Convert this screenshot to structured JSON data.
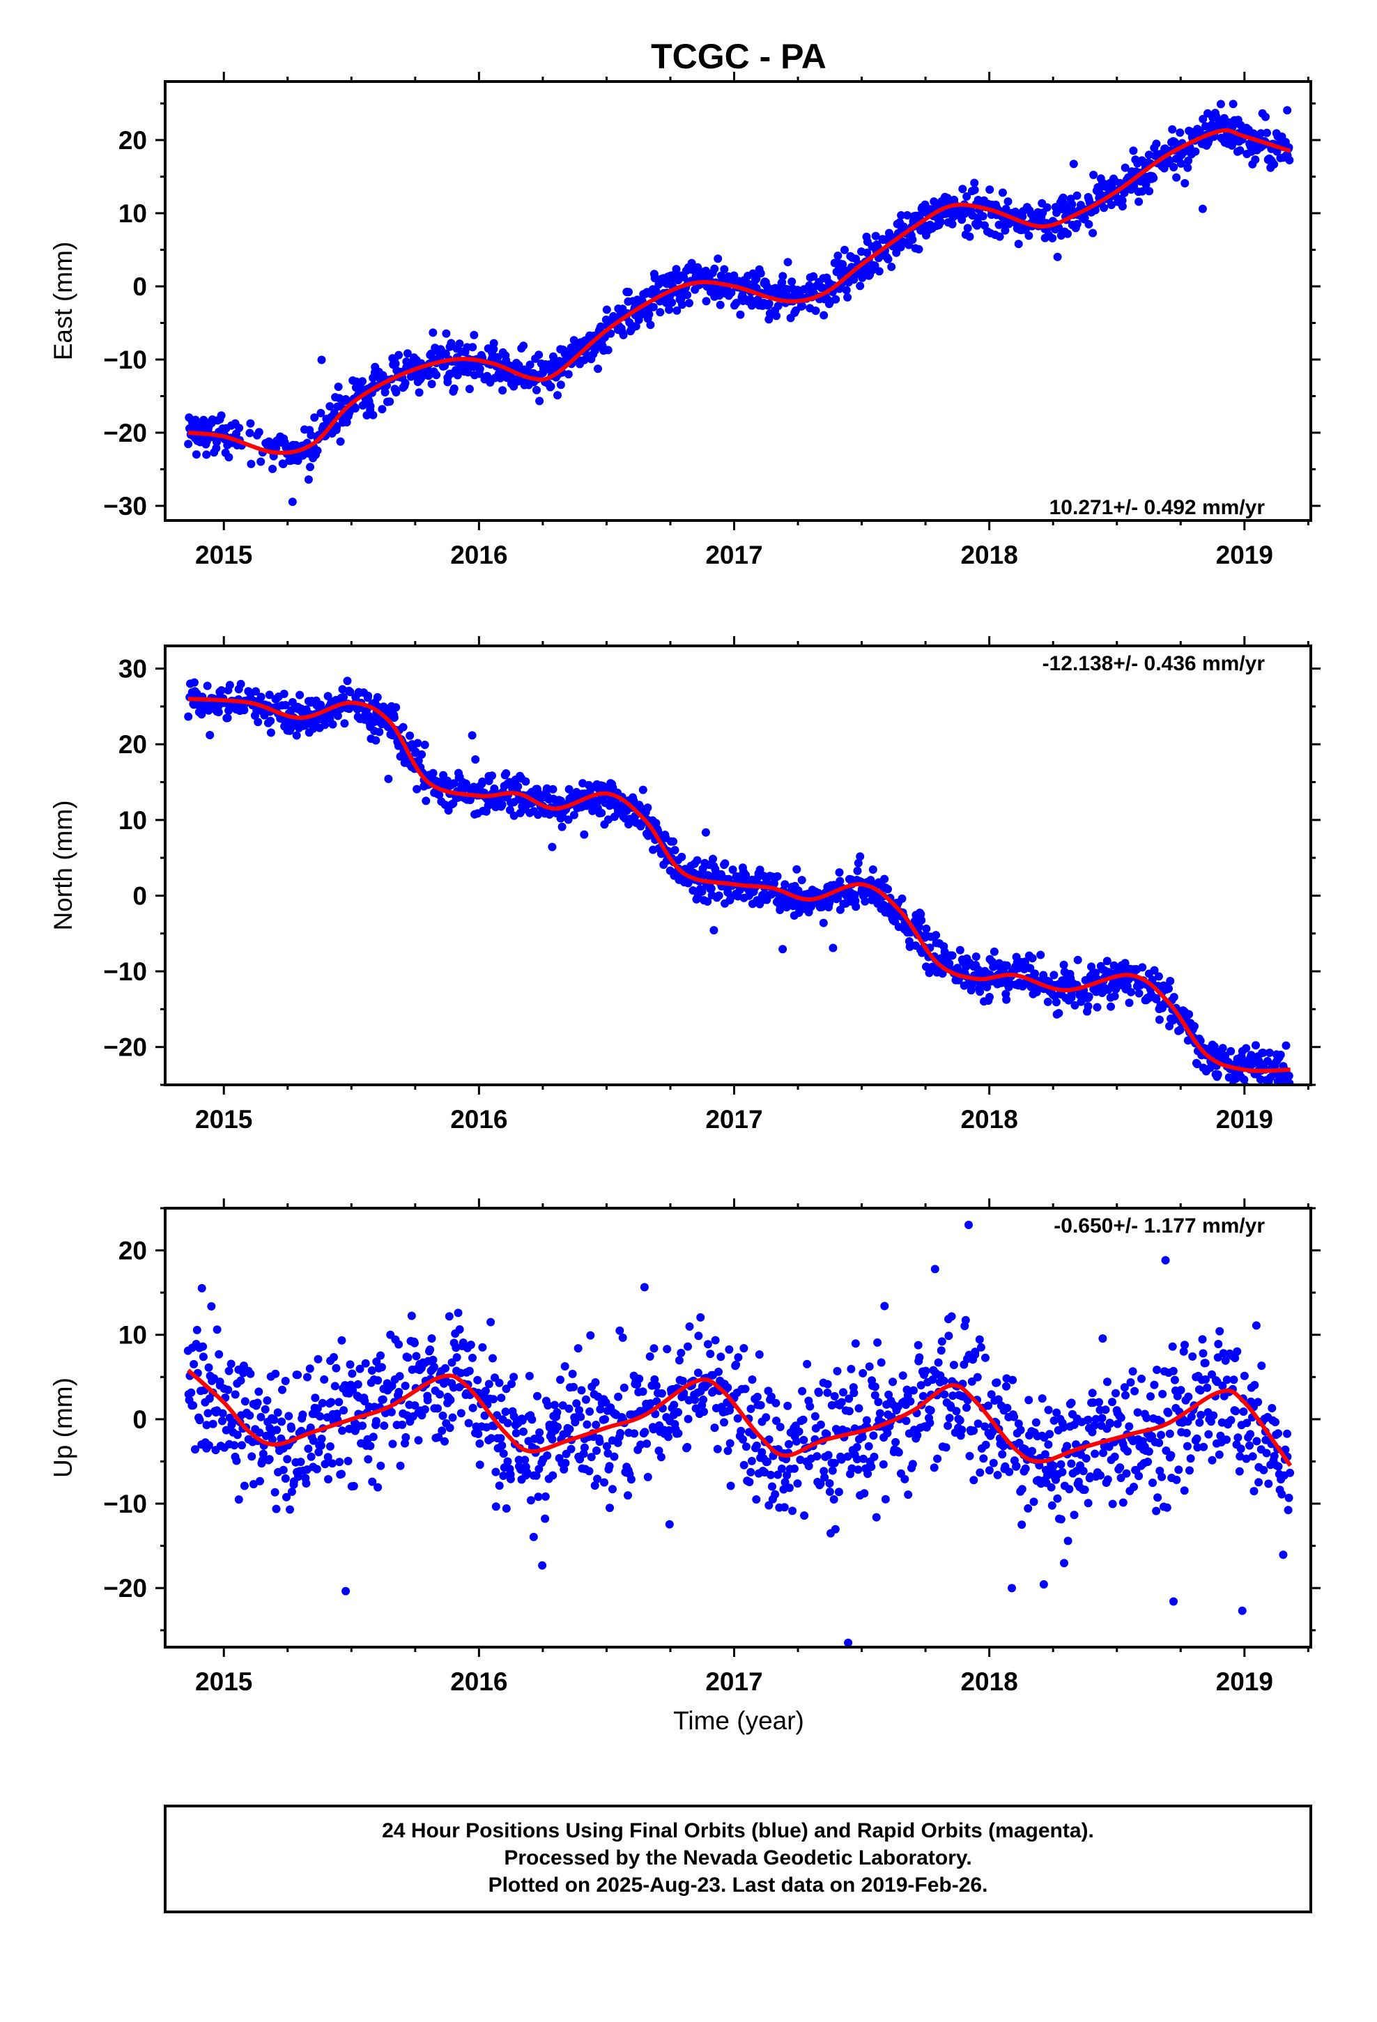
{
  "title": "TCGC - PA",
  "xlabel": "Time (year)",
  "footer": {
    "line1": "24 Hour Positions Using Final Orbits (blue) and Rapid Orbits (magenta).",
    "line2": "Processed by the Nevada Geodetic Laboratory.",
    "line3": "Plotted on 2025-Aug-23. Last data on 2019-Feb-26."
  },
  "colors": {
    "final_orbits": "#0000ff",
    "model": "#ff0000",
    "frame": "#000000"
  },
  "chart_data": [
    {
      "type": "scatter",
      "ylabel": "East (mm)",
      "rate_label": "10.271+/- 0.492 mm/yr",
      "xlim": [
        2014.77,
        2019.26
      ],
      "ylim": [
        -32,
        28
      ],
      "xticks": [
        2015,
        2016,
        2017,
        2018,
        2019
      ],
      "yticks": [
        -30,
        -20,
        -10,
        0,
        10,
        20
      ],
      "grid": false,
      "series": [
        {
          "kind": "points",
          "noise": 1.5,
          "model": [
            [
              2014.86,
              -20
            ],
            [
              2015.0,
              -20.5
            ],
            [
              2015.2,
              -22.7
            ],
            [
              2015.35,
              -21.5
            ],
            [
              2015.5,
              -16
            ],
            [
              2015.7,
              -12
            ],
            [
              2015.9,
              -10
            ],
            [
              2016.05,
              -10.5
            ],
            [
              2016.2,
              -12.5
            ],
            [
              2016.3,
              -12
            ],
            [
              2016.5,
              -6
            ],
            [
              2016.7,
              -1.5
            ],
            [
              2016.85,
              0.5
            ],
            [
              2017.0,
              0
            ],
            [
              2017.2,
              -2
            ],
            [
              2017.35,
              -1
            ],
            [
              2017.5,
              3
            ],
            [
              2017.7,
              8
            ],
            [
              2017.85,
              11
            ],
            [
              2018.0,
              10.5
            ],
            [
              2018.2,
              8.2
            ],
            [
              2018.35,
              10
            ],
            [
              2018.5,
              13
            ],
            [
              2018.7,
              18
            ],
            [
              2018.9,
              21.2
            ],
            [
              2019.0,
              20.5
            ],
            [
              2019.18,
              18.5
            ]
          ]
        },
        {
          "kind": "line",
          "values": [
            [
              2014.86,
              -20
            ],
            [
              2015.0,
              -20.5
            ],
            [
              2015.2,
              -22.7
            ],
            [
              2015.35,
              -21.5
            ],
            [
              2015.5,
              -16
            ],
            [
              2015.7,
              -12
            ],
            [
              2015.9,
              -10
            ],
            [
              2016.05,
              -10.5
            ],
            [
              2016.2,
              -12.5
            ],
            [
              2016.3,
              -12
            ],
            [
              2016.5,
              -6
            ],
            [
              2016.7,
              -1.5
            ],
            [
              2016.85,
              0.5
            ],
            [
              2017.0,
              0
            ],
            [
              2017.2,
              -2
            ],
            [
              2017.35,
              -1
            ],
            [
              2017.5,
              3
            ],
            [
              2017.7,
              8
            ],
            [
              2017.85,
              11
            ],
            [
              2018.0,
              10.5
            ],
            [
              2018.2,
              8.2
            ],
            [
              2018.35,
              10
            ],
            [
              2018.5,
              13
            ],
            [
              2018.7,
              18
            ],
            [
              2018.9,
              21.2
            ],
            [
              2019.0,
              20.5
            ],
            [
              2019.18,
              18.5
            ]
          ]
        }
      ]
    },
    {
      "type": "scatter",
      "ylabel": "North (mm)",
      "rate_label": "-12.138+/- 0.436 mm/yr",
      "xlim": [
        2014.77,
        2019.26
      ],
      "ylim": [
        -25,
        33
      ],
      "xticks": [
        2015,
        2016,
        2017,
        2018,
        2019
      ],
      "yticks": [
        -20,
        -10,
        0,
        10,
        20,
        30
      ],
      "grid": false,
      "series": [
        {
          "kind": "points",
          "noise": 1.3,
          "model": [
            [
              2014.86,
              26
            ],
            [
              2015.1,
              25.5
            ],
            [
              2015.3,
              23.5
            ],
            [
              2015.5,
              25.5
            ],
            [
              2015.65,
              23
            ],
            [
              2015.8,
              15
            ],
            [
              2016.0,
              13.2
            ],
            [
              2016.15,
              13.5
            ],
            [
              2016.3,
              11.5
            ],
            [
              2016.5,
              13.5
            ],
            [
              2016.65,
              10
            ],
            [
              2016.8,
              3
            ],
            [
              2017.0,
              1.5
            ],
            [
              2017.15,
              1
            ],
            [
              2017.3,
              -0.5
            ],
            [
              2017.5,
              1.5
            ],
            [
              2017.65,
              -2
            ],
            [
              2017.8,
              -9
            ],
            [
              2017.95,
              -11
            ],
            [
              2018.1,
              -10.5
            ],
            [
              2018.3,
              -12.5
            ],
            [
              2018.55,
              -10.5
            ],
            [
              2018.7,
              -14
            ],
            [
              2018.85,
              -21
            ],
            [
              2019.0,
              -23
            ],
            [
              2019.18,
              -23
            ]
          ]
        },
        {
          "kind": "line",
          "values": [
            [
              2014.86,
              26
            ],
            [
              2015.1,
              25.5
            ],
            [
              2015.3,
              23.5
            ],
            [
              2015.5,
              25.5
            ],
            [
              2015.65,
              23
            ],
            [
              2015.8,
              15
            ],
            [
              2016.0,
              13.2
            ],
            [
              2016.15,
              13.5
            ],
            [
              2016.3,
              11.5
            ],
            [
              2016.5,
              13.5
            ],
            [
              2016.65,
              10
            ],
            [
              2016.8,
              3
            ],
            [
              2017.0,
              1.5
            ],
            [
              2017.15,
              1
            ],
            [
              2017.3,
              -0.5
            ],
            [
              2017.5,
              1.5
            ],
            [
              2017.65,
              -2
            ],
            [
              2017.8,
              -9
            ],
            [
              2017.95,
              -11
            ],
            [
              2018.1,
              -10.5
            ],
            [
              2018.3,
              -12.5
            ],
            [
              2018.55,
              -10.5
            ],
            [
              2018.7,
              -14
            ],
            [
              2018.85,
              -21
            ],
            [
              2019.0,
              -23
            ],
            [
              2019.18,
              -23
            ]
          ]
        }
      ]
    },
    {
      "type": "scatter",
      "ylabel": "Up (mm)",
      "rate_label": "-0.650+/- 1.177 mm/yr",
      "xlim": [
        2014.77,
        2019.26
      ],
      "ylim": [
        -27,
        25
      ],
      "xticks": [
        2015,
        2016,
        2017,
        2018,
        2019
      ],
      "yticks": [
        -20,
        -10,
        0,
        10,
        20
      ],
      "grid": false,
      "legend_position": "top-right",
      "series": [
        {
          "kind": "points",
          "noise": 4.2,
          "model": [
            [
              2014.86,
              5.8
            ],
            [
              2015.0,
              2
            ],
            [
              2015.1,
              -1.5
            ],
            [
              2015.2,
              -3
            ],
            [
              2015.35,
              -1.5
            ],
            [
              2015.5,
              0
            ],
            [
              2015.65,
              1.5
            ],
            [
              2015.85,
              5
            ],
            [
              2015.95,
              4
            ],
            [
              2016.1,
              -1.5
            ],
            [
              2016.2,
              -3.8
            ],
            [
              2016.35,
              -2.5
            ],
            [
              2016.5,
              -1
            ],
            [
              2016.65,
              0.5
            ],
            [
              2016.85,
              4.5
            ],
            [
              2016.95,
              3.5
            ],
            [
              2017.1,
              -2
            ],
            [
              2017.2,
              -4.3
            ],
            [
              2017.35,
              -2.5
            ],
            [
              2017.55,
              -1
            ],
            [
              2017.7,
              1
            ],
            [
              2017.85,
              4
            ],
            [
              2017.95,
              2
            ],
            [
              2018.1,
              -3.5
            ],
            [
              2018.2,
              -5
            ],
            [
              2018.35,
              -3.5
            ],
            [
              2018.55,
              -1.8
            ],
            [
              2018.7,
              -0.5
            ],
            [
              2018.9,
              3.2
            ],
            [
              2019.0,
              2
            ],
            [
              2019.18,
              -5.5
            ]
          ]
        },
        {
          "kind": "line",
          "values": [
            [
              2014.86,
              5.8
            ],
            [
              2015.0,
              2
            ],
            [
              2015.1,
              -1.5
            ],
            [
              2015.2,
              -3
            ],
            [
              2015.35,
              -1.5
            ],
            [
              2015.5,
              0
            ],
            [
              2015.65,
              1.5
            ],
            [
              2015.85,
              5
            ],
            [
              2015.95,
              4
            ],
            [
              2016.1,
              -1.5
            ],
            [
              2016.2,
              -3.8
            ],
            [
              2016.35,
              -2.5
            ],
            [
              2016.5,
              -1
            ],
            [
              2016.65,
              0.5
            ],
            [
              2016.85,
              4.5
            ],
            [
              2016.95,
              3.5
            ],
            [
              2017.1,
              -2
            ],
            [
              2017.2,
              -4.3
            ],
            [
              2017.35,
              -2.5
            ],
            [
              2017.55,
              -1
            ],
            [
              2017.7,
              1
            ],
            [
              2017.85,
              4
            ],
            [
              2017.95,
              2
            ],
            [
              2018.1,
              -3.5
            ],
            [
              2018.2,
              -5
            ],
            [
              2018.35,
              -3.5
            ],
            [
              2018.55,
              -1.8
            ],
            [
              2018.7,
              -0.5
            ],
            [
              2018.9,
              3.2
            ],
            [
              2019.0,
              2
            ],
            [
              2019.18,
              -5.5
            ]
          ]
        }
      ]
    }
  ]
}
